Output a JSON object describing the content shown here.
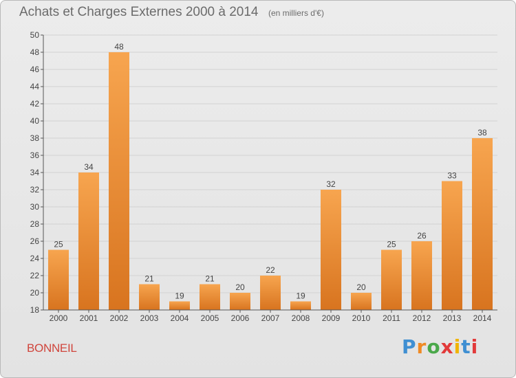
{
  "header": {
    "title": "Achats et Charges Externes 2000 à 2014",
    "subtitle": "(en milliers d'€)"
  },
  "footer": {
    "commune": "BONNEIL",
    "brand": "Proxiti",
    "brand_colors": [
      "#3f8fd2",
      "#f08a24",
      "#4aa84a",
      "#e23a3a",
      "#f0b400",
      "#3f8fd2",
      "#e23a3a"
    ]
  },
  "colors": {
    "bar_top": "#f7a54f",
    "bar_bottom": "#d8741f",
    "grid": "#d2d2d2",
    "axis": "#555555",
    "text": "#444444"
  },
  "chart_data": {
    "type": "bar",
    "title": "Achats et Charges Externes 2000 à 2014",
    "subtitle": "(en milliers d'€)",
    "xlabel": "",
    "ylabel": "",
    "categories": [
      "2000",
      "2001",
      "2002",
      "2003",
      "2004",
      "2005",
      "2006",
      "2007",
      "2008",
      "2009",
      "2010",
      "2011",
      "2012",
      "2013",
      "2014"
    ],
    "values": [
      25,
      34,
      48,
      21,
      19,
      21,
      20,
      22,
      19,
      32,
      20,
      25,
      26,
      33,
      38
    ],
    "ylim": [
      18,
      50
    ],
    "yticks": [
      18,
      20,
      22,
      24,
      26,
      28,
      30,
      32,
      34,
      36,
      38,
      40,
      42,
      44,
      46,
      48,
      50
    ],
    "grid": true,
    "legend": "none"
  }
}
